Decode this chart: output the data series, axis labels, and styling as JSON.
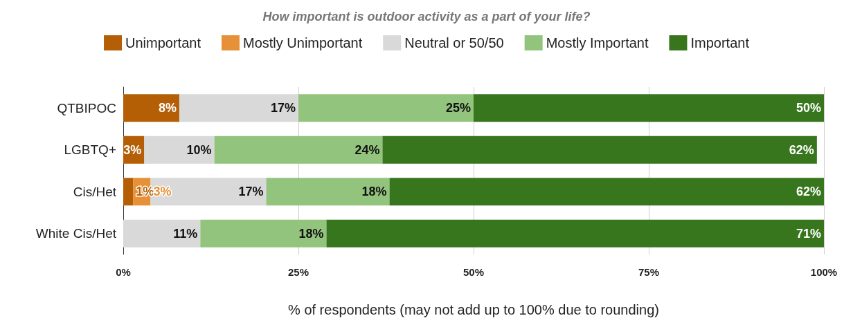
{
  "chart_data": {
    "type": "bar",
    "orientation": "horizontal",
    "stacked": true,
    "title": "How important is outdoor activity as a part of your life?",
    "xlabel": "% of respondents (may not add up to 100% due to rounding)",
    "categories": [
      "QTBIPOC",
      "LGBTQ+",
      "Cis/Het",
      "White Cis/Het"
    ],
    "series": [
      {
        "name": "Unimportant",
        "color": "#b45f06",
        "values": [
          8,
          3,
          1.4,
          null
        ],
        "value_labels": [
          "8%",
          "3%",
          "1%",
          null
        ]
      },
      {
        "name": "Mostly Unimportant",
        "color": "#e69138",
        "values": [
          null,
          null,
          2.5,
          null
        ],
        "value_labels": [
          null,
          null,
          "3%",
          null
        ]
      },
      {
        "name": "Neutral or 50/50",
        "color": "#d9d9d9",
        "values": [
          17,
          10,
          16.5,
          11
        ],
        "value_labels": [
          "17%",
          "10%",
          "17%",
          "11%"
        ]
      },
      {
        "name": "Mostly Important",
        "color": "#93c47d",
        "values": [
          25,
          24,
          17.6,
          18
        ],
        "value_labels": [
          "25%",
          "24%",
          "18%",
          "18%"
        ]
      },
      {
        "name": "Important",
        "color": "#38761d",
        "values": [
          50,
          62,
          62,
          71
        ],
        "value_labels": [
          "50%",
          "62%",
          "62%",
          "71%"
        ]
      }
    ],
    "xlim": [
      0,
      100
    ],
    "xticks": [
      {
        "value": 0,
        "label": "0%"
      },
      {
        "value": 25,
        "label": "25%"
      },
      {
        "value": 50,
        "label": "50%"
      },
      {
        "value": 75,
        "label": "75%"
      },
      {
        "value": 100,
        "label": "100%"
      }
    ],
    "grid": "x",
    "legend": "top"
  }
}
